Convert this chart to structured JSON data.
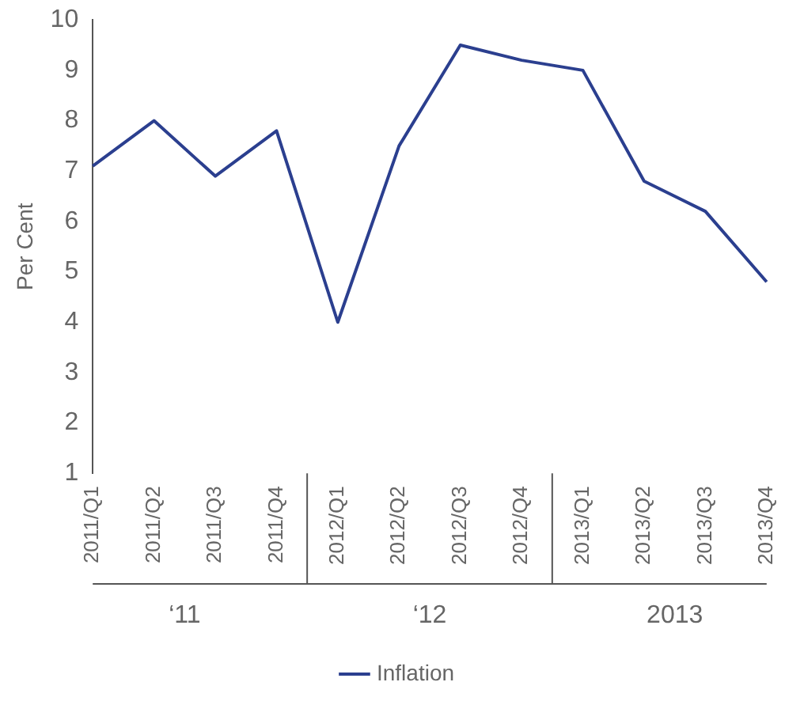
{
  "chart_data": {
    "type": "line",
    "ylabel": "Per Cent",
    "categories": [
      "2011/Q1",
      "2011/Q2",
      "2011/Q3",
      "2011/Q4",
      "2012/Q1",
      "2012/Q2",
      "2012/Q3",
      "2012/Q4",
      "2013/Q1",
      "2013/Q2",
      "2013/Q3",
      "2013/Q4"
    ],
    "series": [
      {
        "name": "Inflation",
        "color": "#2b3f8f",
        "values": [
          7.1,
          8.0,
          6.9,
          7.8,
          4.0,
          7.5,
          9.5,
          9.2,
          9.0,
          6.8,
          6.2,
          4.8
        ]
      }
    ],
    "ylim": [
      1,
      10
    ],
    "yticks": [
      1,
      2,
      3,
      4,
      5,
      6,
      7,
      8,
      9,
      10
    ],
    "grid": false,
    "legend": "bottom",
    "marker": "none",
    "annotations": [
      "‘11",
      "‘12",
      "2013"
    ]
  }
}
